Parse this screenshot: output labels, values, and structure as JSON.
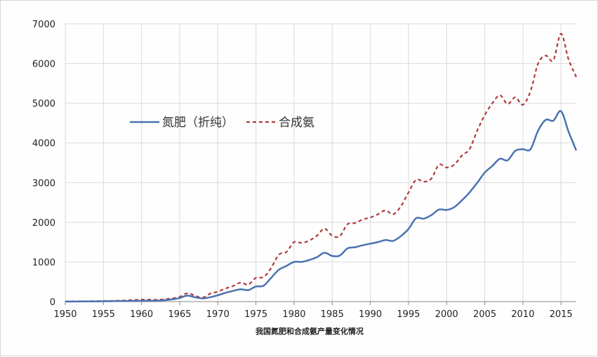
{
  "chart_data": {
    "type": "line",
    "title": "",
    "caption": "我国氮肥和合成氨产量变化情况",
    "xlabel": "",
    "ylabel": "",
    "xlim": [
      1950,
      2017
    ],
    "ylim": [
      0,
      7000
    ],
    "x_ticks": [
      1950,
      1955,
      1960,
      1965,
      1970,
      1975,
      1980,
      1985,
      1990,
      1995,
      2000,
      2005,
      2010,
      2015
    ],
    "y_ticks": [
      0,
      1000,
      2000,
      3000,
      4000,
      5000,
      6000,
      7000
    ],
    "grid": true,
    "legend_position": "upper-left",
    "colors": {
      "nitrogen_fertilizer": "#4a72b0",
      "synthetic_ammonia": "#b03a3a",
      "grid": "#d9d9d9"
    },
    "series": [
      {
        "name": "氮肥（折纯）",
        "style": "solid",
        "x": [
          1950,
          1952,
          1954,
          1956,
          1958,
          1960,
          1962,
          1963,
          1964,
          1965,
          1966,
          1967,
          1968,
          1969,
          1970,
          1971,
          1972,
          1973,
          1974,
          1975,
          1976,
          1977,
          1978,
          1979,
          1980,
          1981,
          1982,
          1983,
          1984,
          1985,
          1986,
          1987,
          1988,
          1989,
          1990,
          1991,
          1992,
          1993,
          1994,
          1995,
          1996,
          1997,
          1998,
          1999,
          2000,
          2001,
          2002,
          2003,
          2004,
          2005,
          2006,
          2007,
          2008,
          2009,
          2010,
          2011,
          2012,
          2013,
          2014,
          2015,
          2016,
          2017
        ],
        "values": [
          2,
          4,
          6,
          10,
          15,
          20,
          25,
          35,
          55,
          90,
          150,
          110,
          80,
          110,
          160,
          220,
          270,
          310,
          290,
          380,
          400,
          600,
          800,
          900,
          1000,
          1000,
          1050,
          1120,
          1230,
          1150,
          1160,
          1340,
          1370,
          1420,
          1460,
          1500,
          1550,
          1530,
          1650,
          1830,
          2100,
          2090,
          2180,
          2320,
          2310,
          2380,
          2550,
          2750,
          2990,
          3250,
          3420,
          3600,
          3560,
          3800,
          3840,
          3840,
          4310,
          4580,
          4560,
          4800,
          4280,
          3810
        ]
      },
      {
        "name": "合成氨",
        "style": "dashed",
        "x": [
          1950,
          1952,
          1954,
          1956,
          1958,
          1960,
          1962,
          1963,
          1964,
          1965,
          1966,
          1967,
          1968,
          1969,
          1970,
          1971,
          1972,
          1973,
          1974,
          1975,
          1976,
          1977,
          1978,
          1979,
          1980,
          1981,
          1982,
          1983,
          1984,
          1985,
          1986,
          1987,
          1988,
          1989,
          1990,
          1991,
          1992,
          1993,
          1994,
          1995,
          1996,
          1997,
          1998,
          1999,
          2000,
          2001,
          2002,
          2003,
          2004,
          2005,
          2006,
          2007,
          2008,
          2009,
          2010,
          2011,
          2012,
          2013,
          2014,
          2015,
          2016,
          2017
        ],
        "values": [
          5,
          8,
          12,
          18,
          30,
          50,
          45,
          60,
          80,
          120,
          210,
          150,
          100,
          200,
          250,
          330,
          390,
          480,
          430,
          600,
          620,
          850,
          1180,
          1250,
          1500,
          1480,
          1540,
          1660,
          1840,
          1660,
          1650,
          1950,
          1980,
          2070,
          2120,
          2200,
          2300,
          2200,
          2400,
          2750,
          3070,
          3020,
          3100,
          3450,
          3380,
          3450,
          3680,
          3840,
          4300,
          4700,
          5000,
          5200,
          4980,
          5150,
          4960,
          5300,
          6000,
          6200,
          6080,
          6750,
          6100,
          5660
        ]
      }
    ]
  }
}
